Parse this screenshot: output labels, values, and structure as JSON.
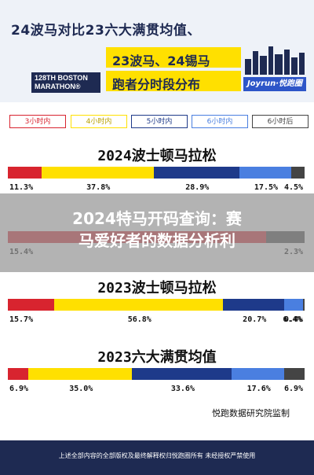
{
  "header": {
    "title_line1": "24波马对比23六大满贯均值、",
    "title_line2": "23波马、24锡马",
    "title_line3": "跑者分时段分布",
    "logo_text": "128TH BOSTON MARATHON®",
    "brand": "Joyrun·悦跑圈"
  },
  "legend": [
    {
      "label": "3小时内",
      "color": "#d8242f"
    },
    {
      "label": "4小时内",
      "color": "#ffe000"
    },
    {
      "label": "5小时内",
      "color": "#1e3a8a"
    },
    {
      "label": "6小时内",
      "color": "#4a7fe0"
    },
    {
      "label": "6小时后",
      "color": "#444444"
    }
  ],
  "chart_data": [
    {
      "type": "bar",
      "title": "2024波士顿马拉松",
      "values": [
        11.3,
        37.8,
        28.9,
        17.5,
        4.5
      ],
      "labels": [
        "11.3%",
        "37.8%",
        "28.9%",
        "17.5%",
        "4.5%"
      ]
    },
    {
      "type": "bar",
      "title": "",
      "values": [
        15.4,
        0,
        0,
        0,
        2.3
      ],
      "labels": [
        "15.4%",
        "",
        "",
        "",
        "2.3%"
      ]
    },
    {
      "type": "bar",
      "title": "2023波士顿马拉松",
      "values": [
        15.7,
        56.8,
        20.7,
        6.4,
        0.4
      ],
      "labels": [
        "15.7%",
        "56.8%",
        "20.7%",
        "6.4%",
        "0.4%"
      ]
    },
    {
      "type": "bar",
      "title": "2023六大满贯均值",
      "values": [
        6.9,
        35.0,
        33.6,
        17.6,
        6.9
      ],
      "labels": [
        "6.9%",
        "35.0%",
        "33.6%",
        "17.6%",
        "6.9%"
      ]
    }
  ],
  "overlay": {
    "line1": "2024特马开码查询：赛",
    "line2": "马爱好者的数据分析利"
  },
  "watermark": "悦跑数据研究院监制",
  "footer": "上述全部内容的全部版权及最终解释权归悦跑圈所有 未经授权严禁使用"
}
